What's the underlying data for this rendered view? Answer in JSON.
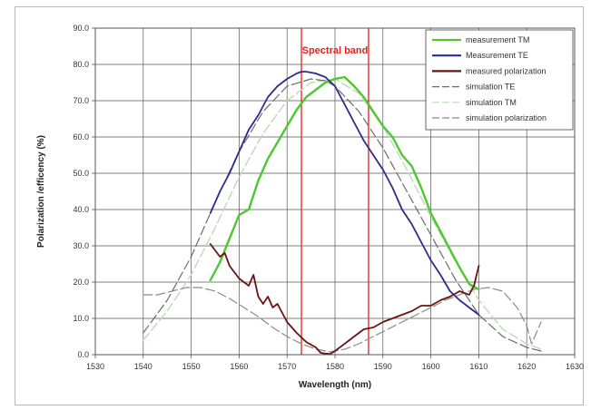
{
  "chart_data": {
    "type": "line",
    "title": "",
    "xlabel": "Wavelength (nm)",
    "ylabel": "Polarization /efficency (%)",
    "xlim": [
      1530,
      1630
    ],
    "ylim": [
      0,
      90
    ],
    "x_ticks": [
      1530,
      1540,
      1550,
      1560,
      1570,
      1580,
      1590,
      1600,
      1610,
      1620,
      1630
    ],
    "y_ticks": [
      "0.0",
      "10.0",
      "20.0",
      "30.0",
      "40.0",
      "50.0",
      "60.0",
      "70.0",
      "80.0",
      "90.0"
    ],
    "grid": true,
    "legend_position": "top-right",
    "annotations": [
      {
        "type": "vline",
        "x": 1573,
        "color": "#e0231b"
      },
      {
        "type": "vline",
        "x": 1587,
        "color": "#e0231b"
      },
      {
        "type": "text",
        "text": "Spectral band",
        "x": 1580,
        "y": 84,
        "color": "#e0231b"
      }
    ],
    "series": [
      {
        "name": "measurement TM",
        "color": "#4cc830",
        "dash": "solid",
        "width": 2.4,
        "x": [
          1554,
          1556,
          1558,
          1560,
          1562,
          1564,
          1566,
          1568,
          1570,
          1572,
          1574,
          1576,
          1578,
          1580,
          1582,
          1584,
          1586,
          1588,
          1590,
          1592,
          1594,
          1596,
          1598,
          1600,
          1602,
          1604,
          1606,
          1608,
          1610
        ],
        "y": [
          20.5,
          25.5,
          32,
          38.5,
          40,
          48,
          54,
          58.5,
          63,
          67.5,
          71,
          73,
          75,
          76,
          76.5,
          74,
          71,
          67,
          63,
          60,
          55,
          52,
          46,
          39,
          34,
          29,
          24,
          19.5,
          18
        ]
      },
      {
        "name": "Measurement TE",
        "color": "#2a2e8a",
        "dash": "solid",
        "width": 1.8,
        "x": [
          1554,
          1556,
          1558,
          1560,
          1562,
          1564,
          1566,
          1568,
          1570,
          1572,
          1573,
          1574,
          1576,
          1578,
          1580,
          1582,
          1584,
          1586,
          1588,
          1590,
          1592,
          1594,
          1596,
          1598,
          1600,
          1602,
          1604,
          1606,
          1608,
          1610
        ],
        "y": [
          39,
          45,
          50,
          56,
          62,
          66,
          71,
          74,
          76,
          77.5,
          78,
          78,
          77.5,
          76.5,
          74,
          69,
          64,
          59,
          55,
          51,
          46,
          40,
          36,
          31,
          26,
          22,
          17.5,
          15,
          13,
          11
        ]
      },
      {
        "name": "measured polarization",
        "color": "#6b1414",
        "dash": "solid",
        "width": 1.8,
        "x": [
          1554,
          1556,
          1557,
          1558,
          1560,
          1562,
          1563,
          1564,
          1565,
          1566,
          1567,
          1568,
          1570,
          1572,
          1574,
          1576,
          1577,
          1578,
          1579,
          1580,
          1582,
          1584,
          1586,
          1588,
          1590,
          1592,
          1594,
          1596,
          1598,
          1600,
          1602,
          1604,
          1606,
          1608,
          1609,
          1610
        ],
        "y": [
          30.5,
          27,
          28,
          24.5,
          21,
          19,
          22,
          16,
          14,
          16,
          13,
          14,
          9,
          6,
          3.5,
          2,
          0.5,
          0.3,
          0.2,
          1,
          3,
          5,
          7,
          7.5,
          9,
          10,
          11,
          12,
          13.5,
          13.5,
          15,
          16,
          17.5,
          16.5,
          19,
          24.5
        ]
      },
      {
        "name": "simulation TE",
        "color": "#6b6b6b",
        "dash": "10 4",
        "width": 1.2,
        "x": [
          1540,
          1545,
          1550,
          1555,
          1560,
          1565,
          1570,
          1575,
          1578,
          1580,
          1585,
          1590,
          1595,
          1600,
          1605,
          1610,
          1615,
          1620,
          1623
        ],
        "y": [
          6,
          15,
          27,
          42,
          56,
          67,
          74,
          76,
          75.5,
          74,
          67,
          57,
          45,
          33,
          21,
          11,
          5,
          2,
          1
        ]
      },
      {
        "name": "simulation TM",
        "color": "#b9ddb2",
        "dash": "10 4",
        "width": 1.4,
        "x": [
          1540,
          1545,
          1550,
          1555,
          1560,
          1565,
          1570,
          1575,
          1580,
          1585,
          1590,
          1595,
          1600,
          1605,
          1610,
          1615,
          1620,
          1623
        ],
        "y": [
          4,
          12,
          22,
          35,
          49,
          61,
          70,
          75,
          76,
          72,
          63,
          51,
          38,
          26,
          15,
          7,
          3,
          1.5
        ]
      },
      {
        "name": "simulation polarization",
        "color": "#8a8a8a",
        "dash": "10 4",
        "width": 1.2,
        "x": [
          1540,
          1543,
          1546,
          1549,
          1552,
          1555,
          1558,
          1561,
          1564,
          1567,
          1570,
          1573,
          1576,
          1579,
          1582,
          1585,
          1588,
          1591,
          1594,
          1597,
          1600,
          1603,
          1606,
          1609,
          1612,
          1615,
          1618,
          1620,
          1621,
          1622,
          1623
        ],
        "y": [
          16.5,
          16.5,
          17.5,
          18.5,
          18.5,
          17.5,
          15.5,
          13,
          10.5,
          7.5,
          5,
          3,
          1.5,
          0.8,
          1.5,
          3,
          5,
          7,
          9,
          11,
          13,
          15,
          16.5,
          18,
          18.5,
          17.5,
          13,
          8,
          3,
          6,
          9
        ]
      }
    ]
  }
}
